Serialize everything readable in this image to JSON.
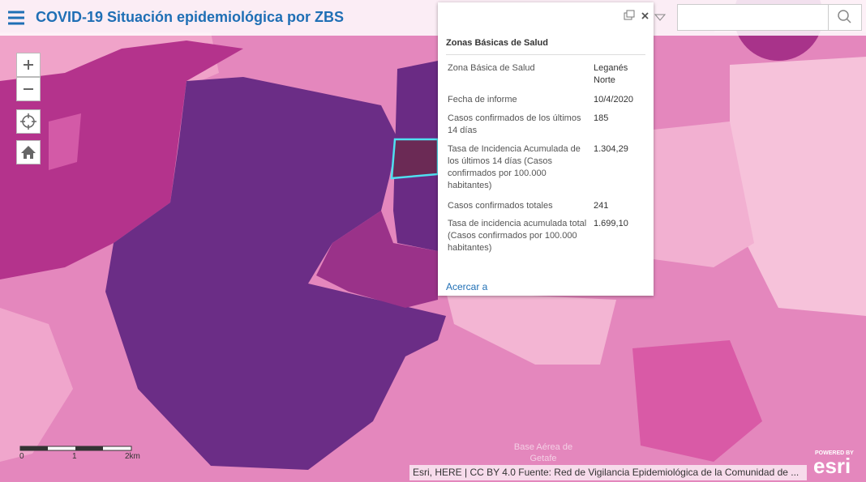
{
  "header": {
    "title": "COVID-19 Situación epidemiológica por ZBS"
  },
  "popup": {
    "title": "Zonas Básicas de Salud",
    "fields": [
      {
        "label": "Zona Básica de Salud",
        "value": "Leganés Norte"
      },
      {
        "label": "Fecha de informe",
        "value": "10/4/2020"
      },
      {
        "label": "Casos confirmados de los últimos 14 días",
        "value": "185"
      },
      {
        "label": "Tasa de Incidencia Acumulada de los últimos 14 días (Casos confirmados por 100.000 habitantes)",
        "value": "1.304,29"
      },
      {
        "label": "Casos confirmados totales",
        "value": "241"
      },
      {
        "label": "Tasa de incidencia acumulada total (Casos confirmados por 100.000 habitantes)",
        "value": "1.699,10"
      }
    ],
    "action": "Acercar a"
  },
  "map": {
    "labels": [
      "Base Aérea de Getafe"
    ]
  },
  "scale_bar": {
    "labels": [
      "0",
      "1",
      "2km"
    ]
  },
  "attribution": "Esri, HERE | CC BY 4.0 Fuente: Red de Vigilancia Epidemiológica de la Comunidad de ...",
  "logo": {
    "caption": "POWERED BY",
    "name": "esri"
  }
}
